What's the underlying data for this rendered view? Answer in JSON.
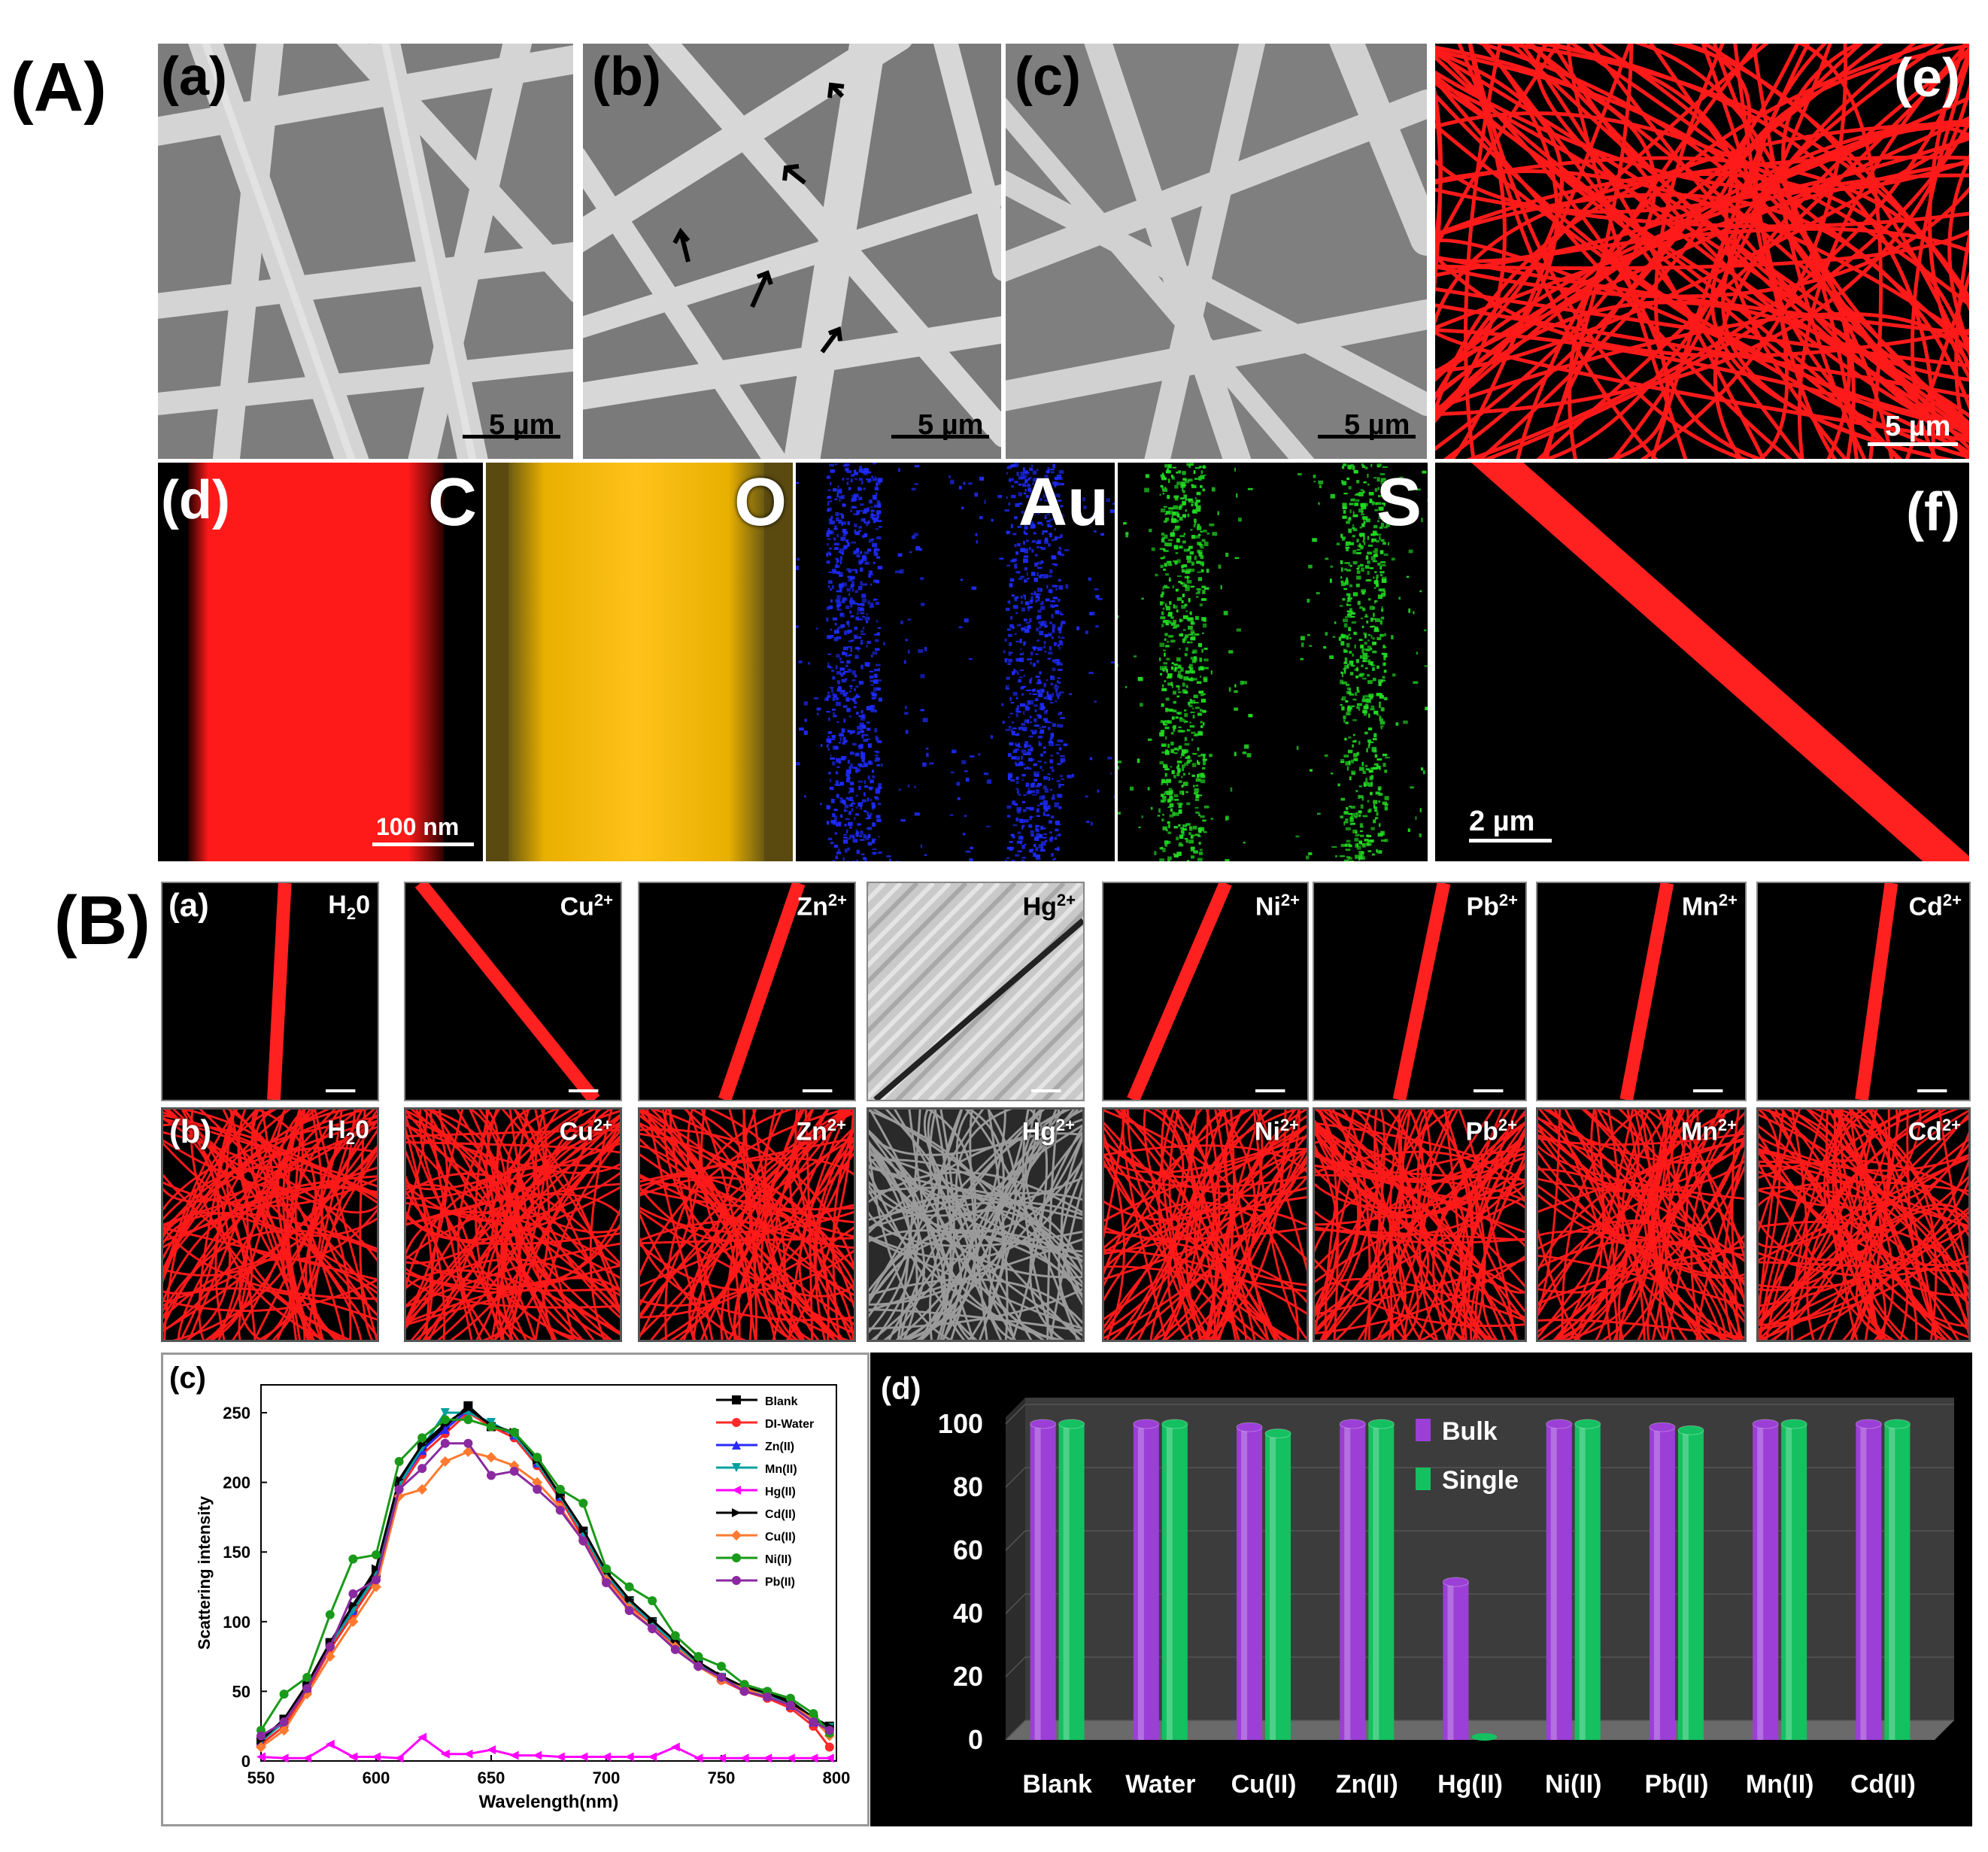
{
  "labels": {
    "A": "(A)",
    "B": "(B)",
    "a": "(a)",
    "b": "(b)",
    "c": "(c)",
    "d": "(d)",
    "e": "(e)",
    "f": "(f)"
  },
  "scale_bars": {
    "a": "5 µm",
    "b": "5 µm",
    "c": "5 µm",
    "e": "5 µm",
    "d": "100 nm",
    "f": "2 µm"
  },
  "elements": [
    {
      "symbol": "C",
      "color": "#ff1a1a"
    },
    {
      "symbol": "O",
      "color": "#e8b000"
    },
    {
      "symbol": "Au",
      "color": "#1e2cff"
    },
    {
      "symbol": "S",
      "color": "#22dd22"
    }
  ],
  "ions": [
    {
      "base": "H",
      "sub": "2",
      "base2": "0",
      "sup": "",
      "key": "h2o",
      "quenched": false
    },
    {
      "base": "Cu",
      "sub": "",
      "base2": "",
      "sup": "2+",
      "key": "cu",
      "quenched": false
    },
    {
      "base": "Zn",
      "sub": "",
      "base2": "",
      "sup": "2+",
      "key": "zn",
      "quenched": false
    },
    {
      "base": "Hg",
      "sub": "",
      "base2": "",
      "sup": "2+",
      "key": "hg",
      "quenched": true
    },
    {
      "base": "Ni",
      "sub": "",
      "base2": "",
      "sup": "2+",
      "key": "ni",
      "quenched": false
    },
    {
      "base": "Pb",
      "sub": "",
      "base2": "",
      "sup": "2+",
      "key": "pb",
      "quenched": false
    },
    {
      "base": "Mn",
      "sub": "",
      "base2": "",
      "sup": "2+",
      "key": "mn",
      "quenched": false
    },
    {
      "base": "Cd",
      "sub": "",
      "base2": "",
      "sup": "2+",
      "key": "cd",
      "quenched": false
    }
  ],
  "chart_data": [
    {
      "panel": "(c)",
      "type": "line",
      "xlabel": "Wavelength(nm)",
      "ylabel": "Scattering intensity",
      "xlim": [
        550,
        800
      ],
      "ylim": [
        0,
        270
      ],
      "xticks": [
        550,
        600,
        650,
        700,
        750,
        800
      ],
      "yticks": [
        0,
        50,
        100,
        150,
        200,
        250
      ],
      "x": [
        550,
        560,
        570,
        580,
        590,
        600,
        610,
        620,
        630,
        640,
        650,
        660,
        670,
        680,
        690,
        700,
        710,
        720,
        730,
        740,
        750,
        760,
        770,
        780,
        790,
        797
      ],
      "legend_position": "top-right",
      "series": [
        {
          "name": "Blank",
          "color": "#000000",
          "marker": "square",
          "values": [
            15,
            30,
            55,
            85,
            110,
            135,
            200,
            225,
            240,
            255,
            240,
            235,
            215,
            190,
            165,
            135,
            115,
            100,
            85,
            70,
            60,
            52,
            48,
            42,
            30,
            25
          ]
        },
        {
          "name": "DI-Water",
          "color": "#ff2a2a",
          "marker": "circle",
          "values": [
            12,
            25,
            50,
            80,
            105,
            130,
            195,
            220,
            235,
            250,
            240,
            232,
            212,
            188,
            160,
            132,
            112,
            98,
            82,
            68,
            58,
            50,
            45,
            38,
            25,
            10
          ]
        },
        {
          "name": "Zn(II)",
          "color": "#2a2aff",
          "marker": "triangle-up",
          "values": [
            14,
            28,
            52,
            83,
            108,
            133,
            198,
            223,
            238,
            252,
            242,
            234,
            214,
            190,
            163,
            134,
            114,
            99,
            84,
            70,
            60,
            52,
            47,
            40,
            28,
            24
          ]
        },
        {
          "name": "Mn(II)",
          "color": "#00a0a0",
          "marker": "triangle-down",
          "values": [
            14,
            28,
            52,
            83,
            108,
            133,
            198,
            225,
            250,
            250,
            243,
            234,
            214,
            190,
            163,
            134,
            114,
            99,
            84,
            70,
            60,
            52,
            47,
            40,
            28,
            24
          ]
        },
        {
          "name": "Hg(II)",
          "color": "#ff00ff",
          "marker": "triangle-left",
          "values": [
            3,
            2,
            2,
            12,
            3,
            3,
            2,
            17,
            5,
            5,
            8,
            4,
            4,
            3,
            3,
            3,
            3,
            3,
            10,
            2,
            2,
            2,
            2,
            2,
            2,
            2
          ]
        },
        {
          "name": "Cd(II)",
          "color": "#000000",
          "marker": "triangle-right",
          "values": [
            15,
            30,
            55,
            85,
            112,
            138,
            202,
            227,
            242,
            253,
            241,
            236,
            216,
            191,
            166,
            136,
            116,
            101,
            86,
            71,
            61,
            53,
            49,
            43,
            31,
            25
          ]
        },
        {
          "name": "Cu(II)",
          "color": "#ff7a30",
          "marker": "diamond",
          "values": [
            10,
            22,
            48,
            75,
            100,
            125,
            190,
            195,
            215,
            222,
            218,
            212,
            200,
            182,
            158,
            130,
            110,
            95,
            82,
            68,
            58,
            52,
            46,
            40,
            30,
            18
          ]
        },
        {
          "name": "Ni(II)",
          "color": "#1a9a1a",
          "marker": "circle",
          "values": [
            22,
            48,
            60,
            105,
            145,
            148,
            215,
            232,
            245,
            245,
            240,
            236,
            218,
            195,
            185,
            138,
            125,
            115,
            90,
            75,
            68,
            55,
            50,
            45,
            34,
            20
          ]
        },
        {
          "name": "Pb(II)",
          "color": "#8a2aa0",
          "marker": "circle",
          "values": [
            18,
            28,
            52,
            82,
            120,
            130,
            195,
            210,
            228,
            228,
            205,
            208,
            195,
            180,
            158,
            128,
            108,
            95,
            80,
            68,
            60,
            50,
            46,
            40,
            28,
            22
          ]
        }
      ]
    },
    {
      "panel": "(d)",
      "type": "bar",
      "categories": [
        "Blank",
        "Water",
        "Cu(II)",
        "Zn(II)",
        "Hg(II)",
        "Ni(II)",
        "Pb(II)",
        "Mn(II)",
        "Cd(II)"
      ],
      "ylim": [
        0,
        100
      ],
      "yticks": [
        0,
        20,
        40,
        60,
        80,
        100
      ],
      "legend_position": "top-center",
      "series": [
        {
          "name": "Bulk",
          "color": "#9b3fd6",
          "values": [
            100,
            100,
            99,
            100,
            50,
            100,
            99,
            100,
            100
          ]
        },
        {
          "name": "Single",
          "color": "#14c060",
          "values": [
            100,
            100,
            97,
            100,
            0,
            100,
            98,
            100,
            100
          ]
        }
      ]
    }
  ]
}
